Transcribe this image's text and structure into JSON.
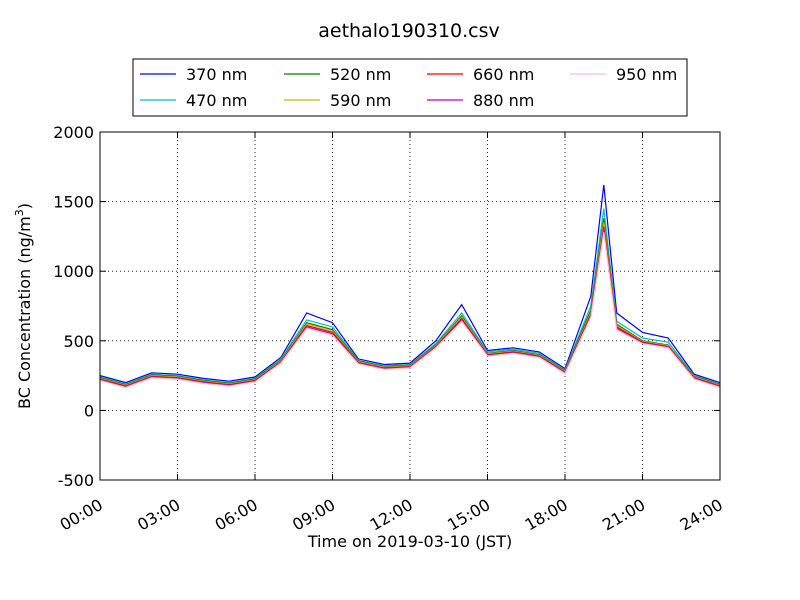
{
  "chart_data": {
    "type": "line",
    "title": "aethalo190310.csv",
    "xlabel": "Time on 2019-03-10 (JST)",
    "ylabel": "BC Concentration (ng/m³)",
    "ylabel_main": "BC Concentration (ng/m",
    "ylabel_sup": "3",
    "ylabel_close": ")",
    "xlim_hours": [
      0,
      24
    ],
    "ylim": [
      -500,
      2000
    ],
    "x_ticks": [
      "00:00",
      "03:00",
      "06:00",
      "09:00",
      "12:00",
      "15:00",
      "18:00",
      "21:00",
      "24:00"
    ],
    "y_ticks": [
      "-500",
      "0",
      "500",
      "1000",
      "1500",
      "2000"
    ],
    "grid": true,
    "legend_position": "top, above plot",
    "series": [
      {
        "name": "370 nm",
        "color": "#0000ff",
        "x_hours": [
          0,
          1,
          2,
          3,
          4,
          5,
          6,
          7,
          8,
          9,
          10,
          11,
          12,
          13,
          14,
          15,
          16,
          17,
          18,
          19,
          19.5,
          20,
          21,
          22,
          23,
          24
        ],
        "values": [
          250,
          200,
          270,
          260,
          230,
          210,
          240,
          380,
          700,
          630,
          370,
          330,
          340,
          500,
          760,
          430,
          450,
          420,
          300,
          820,
          1620,
          700,
          560,
          520,
          260,
          200
        ]
      },
      {
        "name": "470 nm",
        "color": "#00bfbf",
        "x_hours": [
          0,
          1,
          2,
          3,
          4,
          5,
          6,
          7,
          8,
          9,
          10,
          11,
          12,
          13,
          14,
          15,
          16,
          17,
          18,
          19,
          19.5,
          20,
          21,
          22,
          23,
          24
        ],
        "values": [
          240,
          190,
          260,
          250,
          220,
          200,
          230,
          370,
          650,
          600,
          360,
          320,
          330,
          480,
          700,
          420,
          440,
          410,
          290,
          750,
          1450,
          640,
          520,
          490,
          250,
          190
        ]
      },
      {
        "name": "520 nm",
        "color": "#008000",
        "x_hours": [
          0,
          1,
          2,
          3,
          4,
          5,
          6,
          7,
          8,
          9,
          10,
          11,
          12,
          13,
          14,
          15,
          16,
          17,
          18,
          19,
          19.5,
          20,
          21,
          22,
          23,
          24
        ],
        "values": [
          235,
          185,
          255,
          245,
          215,
          195,
          225,
          360,
          630,
          580,
          355,
          315,
          325,
          470,
          680,
          410,
          430,
          400,
          285,
          720,
          1380,
          620,
          500,
          470,
          245,
          185
        ]
      },
      {
        "name": "590 nm",
        "color": "#bfbf00",
        "x_hours": [
          0,
          1,
          2,
          3,
          4,
          5,
          6,
          7,
          8,
          9,
          10,
          11,
          12,
          13,
          14,
          15,
          16,
          17,
          18,
          19,
          19.5,
          20,
          21,
          22,
          23,
          24
        ],
        "values": [
          230,
          180,
          250,
          240,
          210,
          190,
          220,
          355,
          620,
          570,
          350,
          310,
          320,
          465,
          670,
          405,
          425,
          395,
          280,
          700,
          1350,
          610,
          495,
          465,
          240,
          180
        ]
      },
      {
        "name": "660 nm",
        "color": "#ff0000",
        "x_hours": [
          0,
          1,
          2,
          3,
          4,
          5,
          6,
          7,
          8,
          9,
          10,
          11,
          12,
          13,
          14,
          15,
          16,
          17,
          18,
          19,
          19.5,
          20,
          21,
          22,
          23,
          24
        ],
        "values": [
          225,
          175,
          245,
          235,
          205,
          185,
          215,
          350,
          610,
          560,
          345,
          305,
          315,
          460,
          660,
          400,
          420,
          390,
          275,
          690,
          1320,
          600,
          490,
          460,
          235,
          175
        ]
      },
      {
        "name": "880 nm",
        "color": "#bf00bf",
        "x_hours": [
          0,
          1,
          2,
          3,
          4,
          5,
          6,
          7,
          8,
          9,
          10,
          11,
          12,
          13,
          14,
          15,
          16,
          17,
          18,
          19,
          19.5,
          20,
          21,
          22,
          23,
          24
        ],
        "values": [
          220,
          170,
          240,
          230,
          200,
          180,
          210,
          345,
          600,
          550,
          340,
          300,
          310,
          455,
          650,
          395,
          415,
          385,
          270,
          680,
          1300,
          590,
          485,
          455,
          230,
          170
        ]
      },
      {
        "name": "950 nm",
        "color": "#ffc0cb",
        "x_hours": [
          0,
          1,
          2,
          3,
          4,
          5,
          6,
          7,
          8,
          9,
          10,
          11,
          12,
          13,
          14,
          15,
          16,
          17,
          18,
          19,
          19.5,
          20,
          21,
          22,
          23,
          24
        ],
        "values": [
          215,
          165,
          235,
          225,
          195,
          175,
          205,
          340,
          590,
          540,
          335,
          295,
          305,
          450,
          640,
          390,
          410,
          380,
          265,
          670,
          1280,
          580,
          480,
          450,
          225,
          165
        ]
      }
    ]
  }
}
